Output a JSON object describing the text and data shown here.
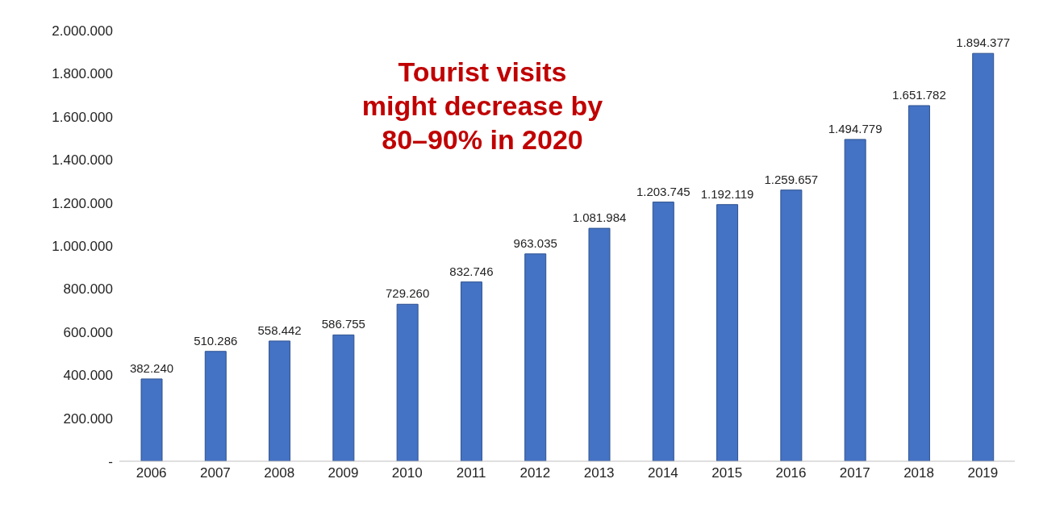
{
  "chart_data": {
    "type": "bar",
    "categories": [
      "2006",
      "2007",
      "2008",
      "2009",
      "2010",
      "2011",
      "2012",
      "2013",
      "2014",
      "2015",
      "2016",
      "2017",
      "2018",
      "2019"
    ],
    "values": [
      382240,
      510286,
      558442,
      586755,
      729260,
      832746,
      963035,
      1081984,
      1203745,
      1192119,
      1259657,
      1494779,
      1651782,
      1894377
    ],
    "color": "#4472c4",
    "value_labels": [
      "382.240",
      "510.286",
      "558.442",
      "586.755",
      "729.260",
      "832.746",
      "963.035",
      "1.081.984",
      "1.203.745",
      "1.192.119",
      "1.259.657",
      "1.494.779",
      "1.651.782",
      "1.894.377"
    ],
    "ylim": [
      0,
      2000000
    ],
    "yticks": [
      {
        "value": 0,
        "label": "-"
      },
      {
        "value": 200000,
        "label": "200.000"
      },
      {
        "value": 400000,
        "label": "400.000"
      },
      {
        "value": 600000,
        "label": "600.000"
      },
      {
        "value": 800000,
        "label": "800.000"
      },
      {
        "value": 1000000,
        "label": "1.000.000"
      },
      {
        "value": 1200000,
        "label": "1.200.000"
      },
      {
        "value": 1400000,
        "label": "1.400.000"
      },
      {
        "value": 1600000,
        "label": "1.600.000"
      },
      {
        "value": 1800000,
        "label": "1.800.000"
      },
      {
        "value": 2000000,
        "label": "2.000.000"
      }
    ],
    "annotations": [
      "Tourist visits\nmight decrease by\n80–90% in 2020"
    ],
    "grid": false,
    "legend": false
  }
}
